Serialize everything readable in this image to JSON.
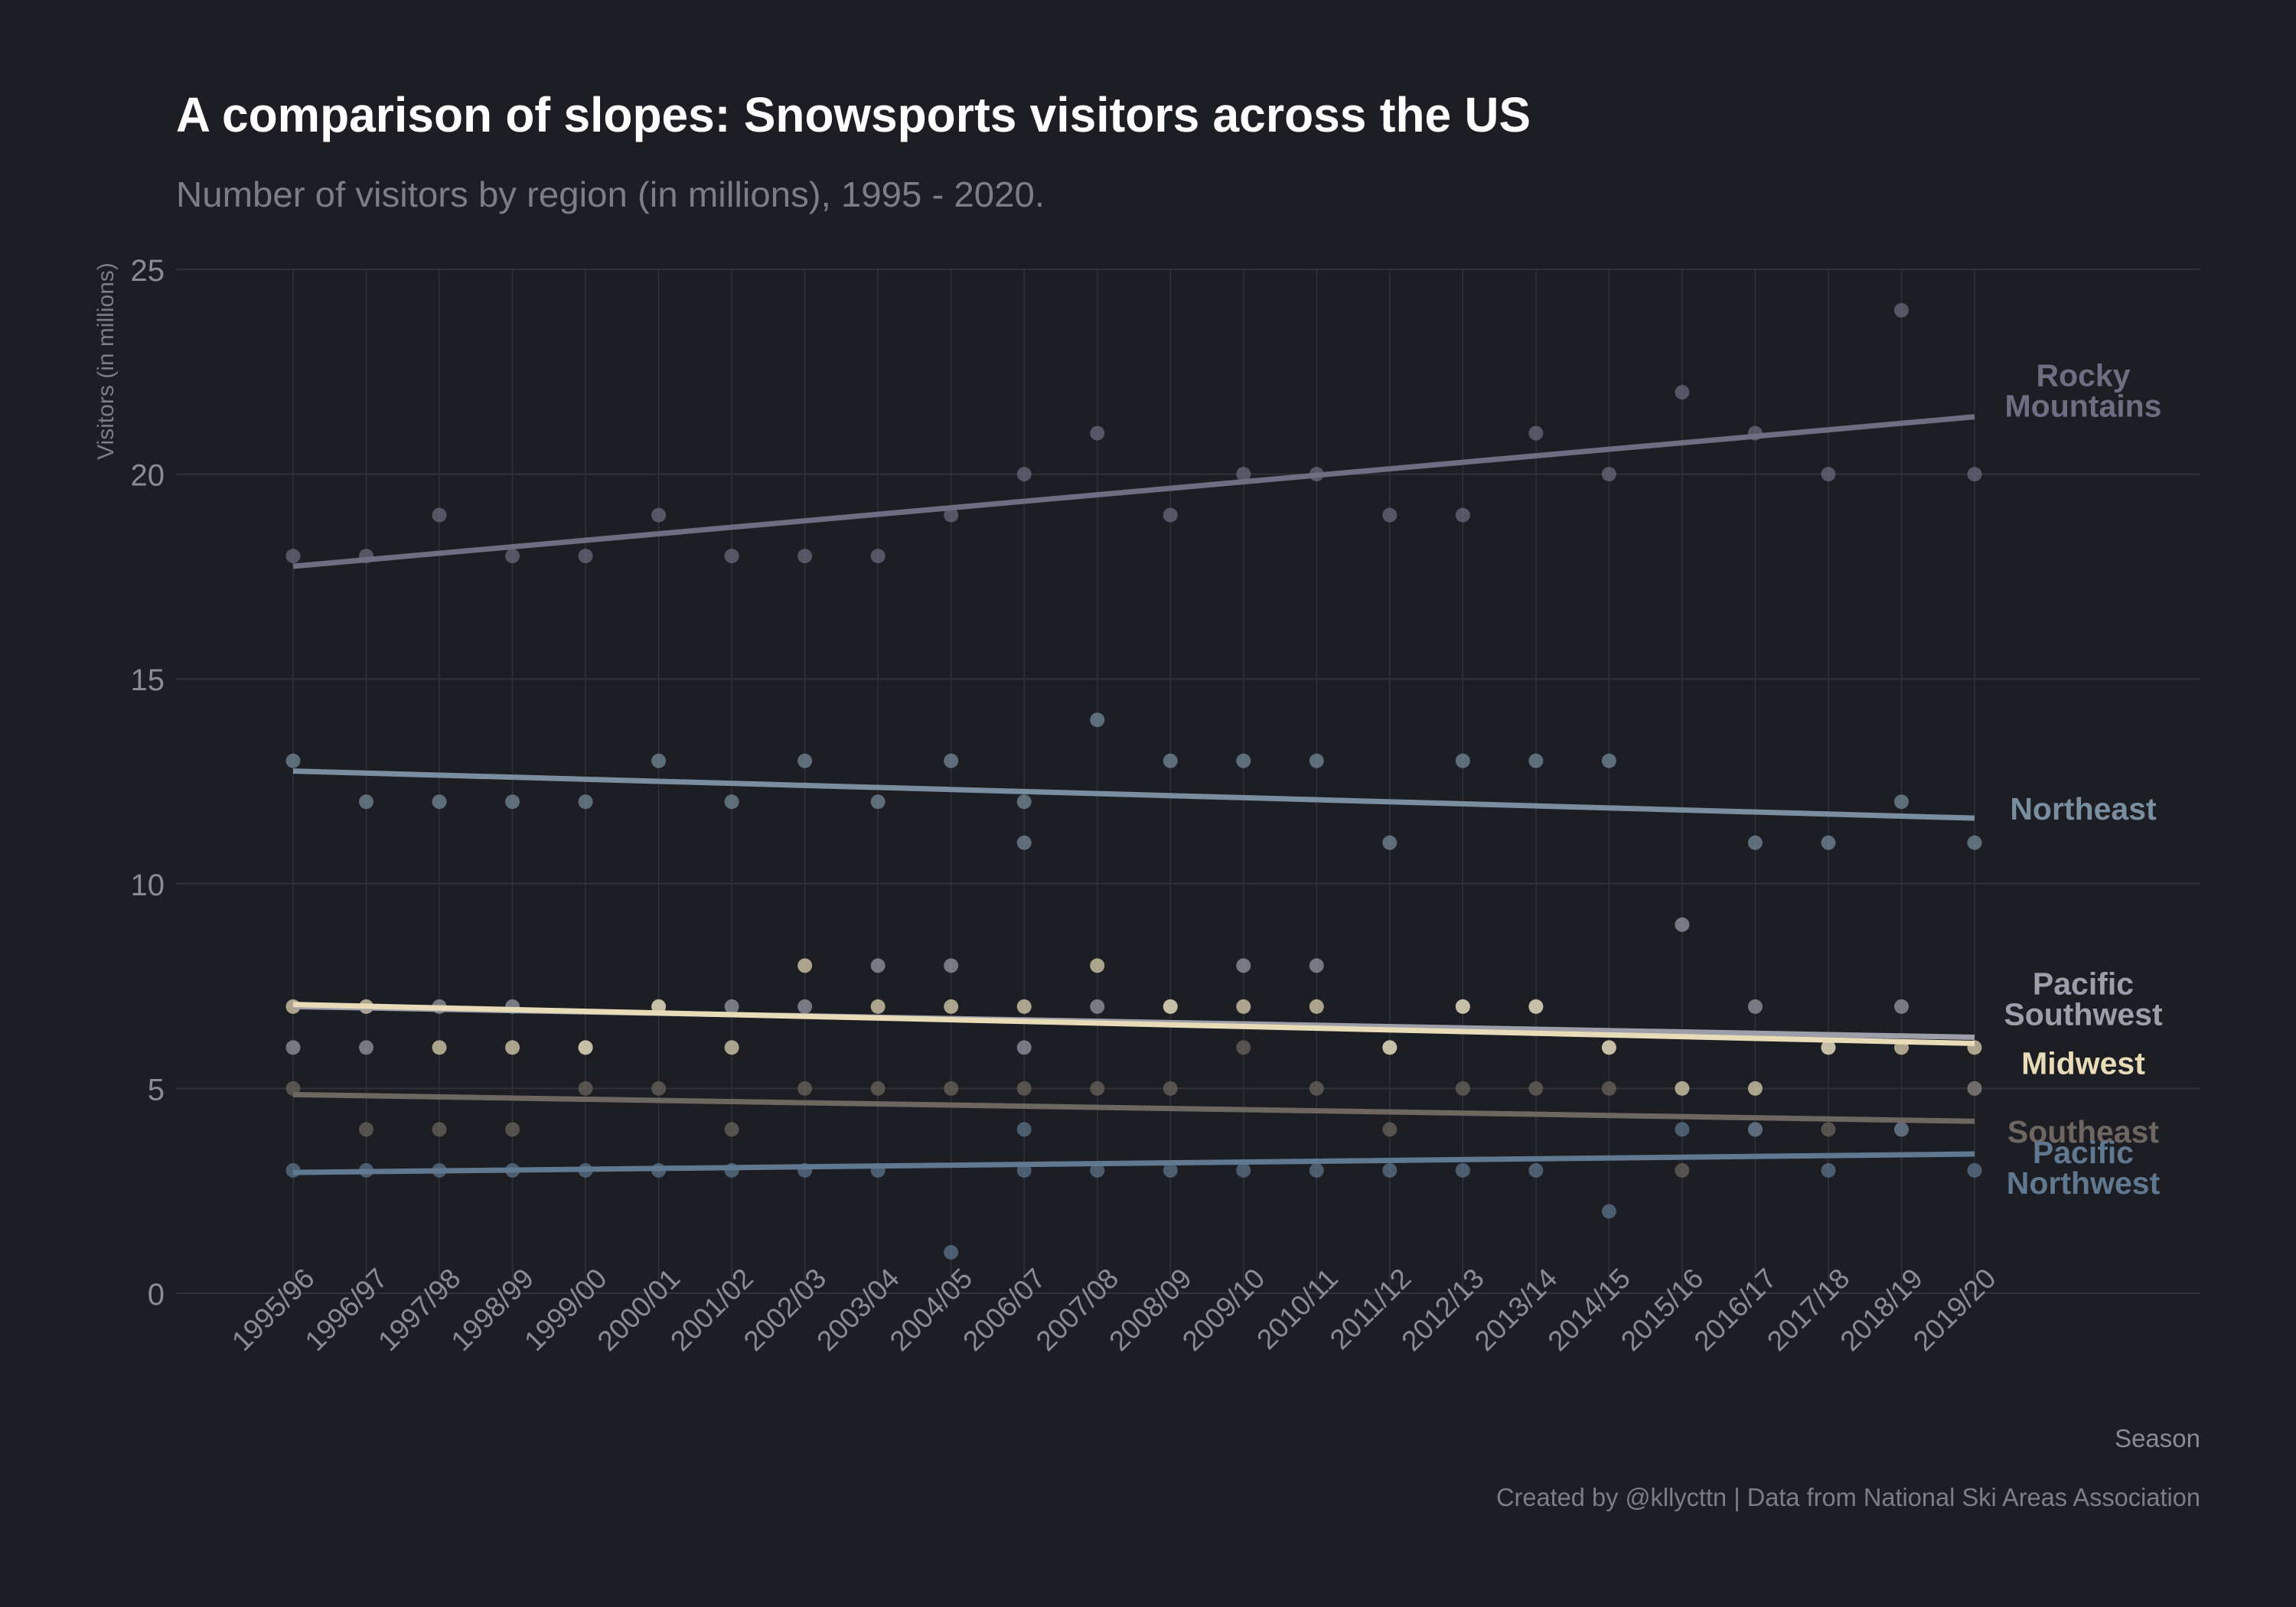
{
  "title": "A comparison of slopes: Snowsports visitors across the US",
  "subtitle": "Number of visitors by region (in millions), 1995 - 2020.",
  "caption": "Created by @kllycttn | Data from National Ski Areas Association",
  "colors": {
    "background": "#1c1e24",
    "grid": "#2f323a",
    "tick_text": "#8a8c93",
    "title": "#ffffff",
    "subtitle": "#7c7e85",
    "caption": "#7c7e85"
  },
  "chart_data": {
    "type": "scatter",
    "xlabel": "Season",
    "ylabel": "Visitors (in millions)",
    "ylim": [
      0,
      25
    ],
    "yticks": [
      0,
      5,
      10,
      15,
      20,
      25
    ],
    "grid": true,
    "legend": "direct labels at right end of trend lines",
    "categories": [
      "1995/96",
      "1996/97",
      "1997/98",
      "1998/99",
      "1999/00",
      "2000/01",
      "2001/02",
      "2002/03",
      "2003/04",
      "2004/05",
      "2006/07",
      "2007/08",
      "2008/09",
      "2009/10",
      "2010/11",
      "2011/12",
      "2012/13",
      "2013/14",
      "2014/15",
      "2015/16",
      "2016/17",
      "2017/18",
      "2018/19",
      "2019/20"
    ],
    "series": [
      {
        "name": "Rocky Mountains",
        "label_lines": [
          "Rocky",
          "Mountains"
        ],
        "color": "#6d6e82",
        "values": [
          18,
          18,
          19,
          18,
          18,
          19,
          18,
          18,
          18,
          19,
          20,
          21,
          19,
          20,
          20,
          19,
          19,
          21,
          20,
          22,
          21,
          20,
          24,
          20
        ],
        "trend": [
          17.75,
          21.4
        ]
      },
      {
        "name": "Northeast",
        "label_lines": [
          "Northeast"
        ],
        "color": "#7a8ea0",
        "values": [
          13,
          12,
          12,
          12,
          12,
          13,
          12,
          13,
          12,
          13,
          12,
          14,
          13,
          13,
          13,
          11,
          13,
          13,
          13,
          null,
          11,
          11,
          12,
          11
        ],
        "extra_points": [
          {
            "x": "2006/07",
            "y": 11
          }
        ],
        "trend": [
          12.75,
          11.6
        ]
      },
      {
        "name": "Pacific Southwest",
        "label_lines": [
          "Pacific",
          "Southwest"
        ],
        "color": "#9e9eaa",
        "values": [
          6,
          6,
          7,
          7,
          6,
          7,
          7,
          7,
          8,
          8,
          6,
          7,
          7,
          8,
          8,
          6,
          7,
          7,
          6,
          9,
          7,
          6,
          7,
          5
        ],
        "trend": [
          7.0,
          6.25
        ]
      },
      {
        "name": "Midwest",
        "label_lines": [
          "Midwest"
        ],
        "color": "#e8dcb8",
        "values": [
          7,
          7,
          6,
          6,
          6,
          7,
          6,
          8,
          7,
          7,
          7,
          8,
          7,
          7,
          7,
          6,
          7,
          7,
          6,
          5,
          5,
          6,
          6,
          6
        ],
        "trend": [
          7.05,
          6.1
        ]
      },
      {
        "name": "Southeast",
        "label_lines": [
          "Southeast"
        ],
        "color": "#6e6660",
        "values": [
          5,
          4,
          4,
          4,
          5,
          5,
          4,
          5,
          5,
          5,
          5,
          5,
          5,
          6,
          5,
          4,
          5,
          5,
          5,
          3,
          4,
          4,
          4,
          5
        ],
        "trend": [
          4.85,
          4.2
        ]
      },
      {
        "name": "Pacific Northwest",
        "label_lines": [
          "Pacific",
          "Northwest"
        ],
        "color": "#607890",
        "values": [
          3,
          3,
          3,
          3,
          3,
          3,
          3,
          3,
          3,
          1,
          3,
          3,
          3,
          3,
          3,
          3,
          3,
          3,
          2,
          4,
          4,
          3,
          4,
          3
        ],
        "extra_points": [
          {
            "x": "2006/07",
            "y": 4
          }
        ],
        "trend": [
          2.95,
          3.4
        ]
      }
    ]
  }
}
